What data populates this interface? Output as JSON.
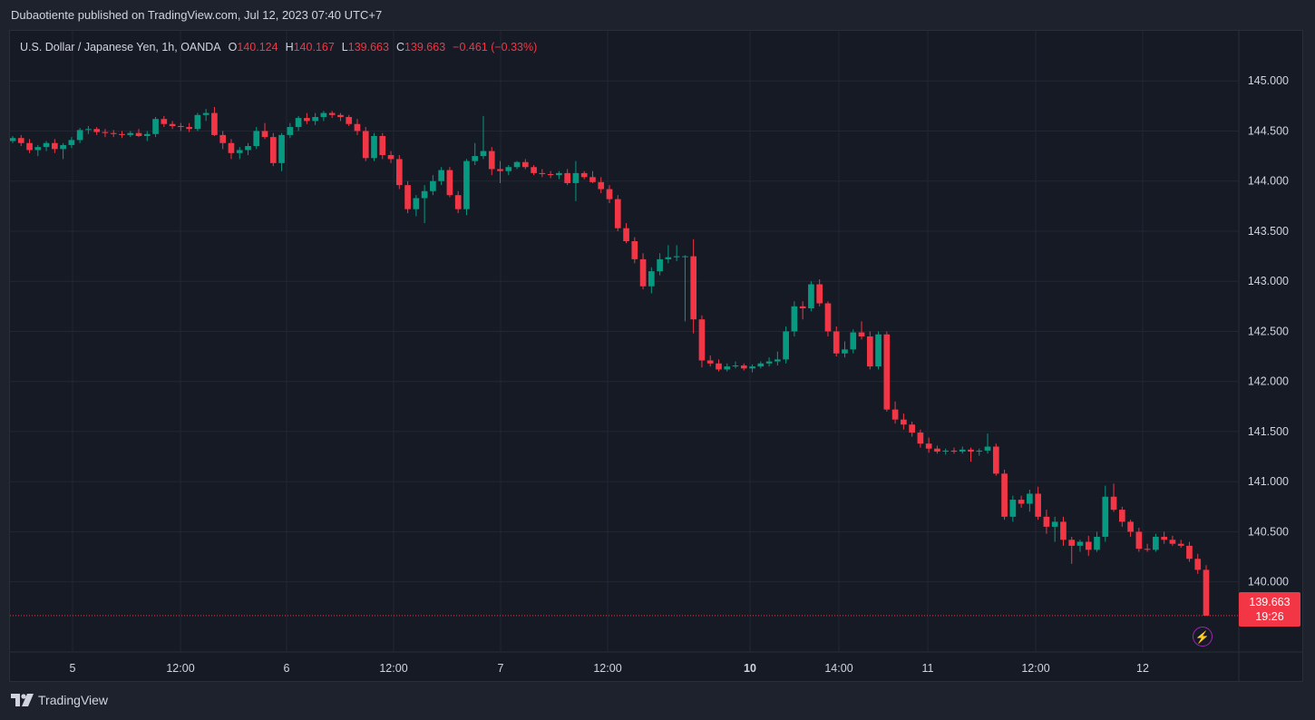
{
  "header": {
    "published_text": "Dubaotiente published on TradingView.com, Jul 12, 2023 07:40 UTC+7"
  },
  "legend": {
    "symbol": "U.S. Dollar / Japanese Yen, 1h, OANDA",
    "o_label": "O",
    "o_value": "140.124",
    "h_label": "H",
    "h_value": "140.167",
    "l_label": "L",
    "l_value": "139.663",
    "c_label": "C",
    "c_value": "139.663",
    "change": "−0.461 (−0.33%)"
  },
  "price_tag": {
    "price": "139.663",
    "countdown": "19:26"
  },
  "footer": {
    "brand": "TradingView"
  },
  "colors": {
    "up": "#089981",
    "down": "#f23645",
    "background": "#161a25",
    "grid": "#232733",
    "text": "#d1d4dc"
  },
  "icons": {
    "flash": "lightning-icon",
    "logo": "tradingview-logo-icon"
  },
  "chart_data": {
    "type": "candlestick",
    "instrument": "U.S. Dollar / Japanese Yen",
    "interval": "1h",
    "source": "OANDA",
    "last_price": 139.663,
    "y_ticks": [
      "145.000",
      "144.500",
      "144.000",
      "143.500",
      "143.000",
      "142.500",
      "142.000",
      "141.500",
      "141.000",
      "140.500",
      "140.000"
    ],
    "ylim": [
      139.3,
      145.5
    ],
    "x_labels": [
      {
        "text": "5",
        "bold": false
      },
      {
        "text": "12:00",
        "bold": false
      },
      {
        "text": "6",
        "bold": false
      },
      {
        "text": "12:00",
        "bold": false
      },
      {
        "text": "7",
        "bold": false
      },
      {
        "text": "12:00",
        "bold": false
      },
      {
        "text": "10",
        "bold": true
      },
      {
        "text": "14:00",
        "bold": false
      },
      {
        "text": "11",
        "bold": false
      },
      {
        "text": "12:00",
        "bold": false
      },
      {
        "text": "12",
        "bold": false
      }
    ],
    "candles": [
      [
        144.4,
        144.45,
        144.38,
        144.43
      ],
      [
        144.43,
        144.46,
        144.35,
        144.38
      ],
      [
        144.38,
        144.42,
        144.28,
        144.31
      ],
      [
        144.31,
        144.36,
        144.25,
        144.34
      ],
      [
        144.34,
        144.4,
        144.3,
        144.38
      ],
      [
        144.38,
        144.42,
        144.28,
        144.32
      ],
      [
        144.32,
        144.38,
        144.22,
        144.36
      ],
      [
        144.36,
        144.44,
        144.33,
        144.41
      ],
      [
        144.41,
        144.53,
        144.38,
        144.51
      ],
      [
        144.51,
        144.55,
        144.47,
        144.52
      ],
      [
        144.52,
        144.54,
        144.46,
        144.49
      ],
      [
        144.49,
        144.52,
        144.44,
        144.48
      ],
      [
        144.48,
        144.51,
        144.44,
        144.47
      ],
      [
        144.47,
        144.5,
        144.43,
        144.46
      ],
      [
        144.46,
        144.5,
        144.44,
        144.48
      ],
      [
        144.48,
        144.52,
        144.44,
        144.45
      ],
      [
        144.45,
        144.5,
        144.4,
        144.47
      ],
      [
        144.47,
        144.64,
        144.44,
        144.62
      ],
      [
        144.62,
        144.65,
        144.54,
        144.57
      ],
      [
        144.57,
        144.6,
        144.52,
        144.55
      ],
      [
        144.55,
        144.58,
        144.5,
        144.54
      ],
      [
        144.54,
        144.58,
        144.49,
        144.52
      ],
      [
        144.52,
        144.68,
        144.5,
        144.66
      ],
      [
        144.66,
        144.72,
        144.6,
        144.68
      ],
      [
        144.68,
        144.74,
        144.45,
        144.46
      ],
      [
        144.46,
        144.5,
        144.32,
        144.38
      ],
      [
        144.38,
        144.42,
        144.22,
        144.28
      ],
      [
        144.28,
        144.34,
        144.22,
        144.31
      ],
      [
        144.31,
        144.38,
        144.26,
        144.35
      ],
      [
        144.35,
        144.54,
        144.32,
        144.5
      ],
      [
        144.5,
        144.58,
        144.42,
        144.44
      ],
      [
        144.44,
        144.48,
        144.15,
        144.18
      ],
      [
        144.18,
        144.48,
        144.1,
        144.46
      ],
      [
        144.46,
        144.58,
        144.43,
        144.54
      ],
      [
        144.54,
        144.65,
        144.5,
        144.63
      ],
      [
        144.63,
        144.68,
        144.57,
        144.6
      ],
      [
        144.6,
        144.68,
        144.56,
        144.64
      ],
      [
        144.64,
        144.7,
        144.6,
        144.68
      ],
      [
        144.68,
        144.7,
        144.63,
        144.66
      ],
      [
        144.66,
        144.68,
        144.6,
        144.64
      ],
      [
        144.64,
        144.66,
        144.55,
        144.57
      ],
      [
        144.57,
        144.62,
        144.46,
        144.5
      ],
      [
        144.5,
        144.54,
        144.2,
        144.23
      ],
      [
        144.23,
        144.48,
        144.2,
        144.45
      ],
      [
        144.45,
        144.48,
        144.22,
        144.26
      ],
      [
        144.26,
        144.3,
        144.18,
        144.22
      ],
      [
        144.22,
        144.26,
        143.92,
        143.96
      ],
      [
        143.96,
        144.0,
        143.68,
        143.72
      ],
      [
        143.72,
        143.86,
        143.65,
        143.83
      ],
      [
        143.83,
        143.96,
        143.58,
        143.9
      ],
      [
        143.9,
        144.06,
        143.86,
        144.0
      ],
      [
        144.0,
        144.14,
        143.96,
        144.11
      ],
      [
        144.11,
        144.14,
        143.84,
        143.86
      ],
      [
        143.86,
        143.9,
        143.68,
        143.72
      ],
      [
        143.72,
        144.22,
        143.66,
        144.2
      ],
      [
        144.2,
        144.38,
        144.16,
        144.25
      ],
      [
        144.25,
        144.65,
        144.22,
        144.3
      ],
      [
        144.3,
        144.34,
        144.06,
        144.12
      ],
      [
        144.12,
        144.2,
        143.98,
        144.1
      ],
      [
        144.1,
        144.16,
        144.06,
        144.14
      ],
      [
        144.14,
        144.2,
        144.12,
        144.19
      ],
      [
        144.19,
        144.22,
        144.12,
        144.14
      ],
      [
        144.14,
        144.16,
        144.06,
        144.08
      ],
      [
        144.08,
        144.12,
        144.04,
        144.07
      ],
      [
        144.07,
        144.1,
        144.03,
        144.06
      ],
      [
        144.06,
        144.1,
        144.02,
        144.08
      ],
      [
        144.08,
        144.12,
        143.96,
        143.98
      ],
      [
        143.98,
        144.2,
        143.8,
        144.08
      ],
      [
        144.08,
        144.1,
        144.02,
        144.04
      ],
      [
        144.04,
        144.1,
        143.98,
        143.99
      ],
      [
        143.99,
        144.04,
        143.88,
        143.92
      ],
      [
        143.92,
        143.96,
        143.78,
        143.82
      ],
      [
        143.82,
        143.86,
        143.5,
        143.53
      ],
      [
        143.53,
        143.58,
        143.38,
        143.4
      ],
      [
        143.4,
        143.44,
        143.18,
        143.22
      ],
      [
        143.22,
        143.28,
        142.92,
        142.95
      ],
      [
        142.95,
        143.14,
        142.88,
        143.1
      ],
      [
        143.1,
        143.28,
        143.06,
        143.22
      ],
      [
        143.22,
        143.36,
        143.18,
        143.24
      ],
      [
        143.24,
        143.36,
        143.2,
        143.25
      ],
      [
        143.25,
        143.26,
        142.6,
        143.25
      ],
      [
        143.25,
        143.42,
        142.48,
        142.62
      ],
      [
        142.62,
        142.66,
        142.14,
        142.21
      ],
      [
        142.21,
        142.26,
        142.15,
        142.18
      ],
      [
        142.18,
        142.22,
        142.1,
        142.12
      ],
      [
        142.12,
        142.18,
        142.1,
        142.15
      ],
      [
        142.15,
        142.2,
        142.13,
        142.16
      ],
      [
        142.16,
        142.18,
        142.11,
        142.13
      ],
      [
        142.13,
        142.17,
        142.09,
        142.15
      ],
      [
        142.15,
        142.2,
        142.13,
        142.18
      ],
      [
        142.18,
        142.24,
        142.15,
        142.2
      ],
      [
        142.2,
        142.3,
        142.16,
        142.22
      ],
      [
        142.22,
        142.55,
        142.18,
        142.5
      ],
      [
        142.5,
        142.8,
        142.45,
        142.75
      ],
      [
        142.75,
        142.8,
        142.62,
        142.73
      ],
      [
        142.73,
        143.0,
        142.7,
        142.97
      ],
      [
        142.97,
        143.02,
        142.75,
        142.78
      ],
      [
        142.78,
        142.8,
        142.45,
        142.5
      ],
      [
        142.5,
        142.55,
        142.25,
        142.28
      ],
      [
        142.28,
        142.4,
        142.24,
        142.32
      ],
      [
        142.32,
        142.52,
        142.28,
        142.49
      ],
      [
        142.49,
        142.6,
        142.42,
        142.45
      ],
      [
        142.45,
        142.5,
        142.12,
        142.15
      ],
      [
        142.15,
        142.5,
        142.12,
        142.47
      ],
      [
        142.47,
        142.5,
        141.7,
        141.72
      ],
      [
        141.72,
        141.8,
        141.58,
        141.62
      ],
      [
        141.62,
        141.68,
        141.52,
        141.57
      ],
      [
        141.57,
        141.6,
        141.45,
        141.49
      ],
      [
        141.49,
        141.52,
        141.34,
        141.38
      ],
      [
        141.38,
        141.44,
        141.29,
        141.33
      ],
      [
        141.33,
        141.36,
        141.28,
        141.3
      ],
      [
        141.3,
        141.33,
        141.27,
        141.31
      ],
      [
        141.31,
        141.34,
        141.28,
        141.3
      ],
      [
        141.3,
        141.35,
        141.28,
        141.32
      ],
      [
        141.32,
        141.34,
        141.2,
        141.3
      ],
      [
        141.3,
        141.33,
        141.26,
        141.31
      ],
      [
        141.31,
        141.48,
        141.28,
        141.35
      ],
      [
        141.35,
        141.38,
        141.06,
        141.08
      ],
      [
        141.08,
        141.12,
        140.62,
        140.65
      ],
      [
        140.65,
        140.86,
        140.6,
        140.82
      ],
      [
        140.82,
        140.86,
        140.74,
        140.78
      ],
      [
        140.78,
        140.92,
        140.7,
        140.88
      ],
      [
        140.88,
        140.95,
        140.62,
        140.65
      ],
      [
        140.65,
        140.72,
        140.48,
        140.55
      ],
      [
        140.55,
        140.65,
        140.4,
        140.6
      ],
      [
        140.6,
        140.65,
        140.36,
        140.42
      ],
      [
        140.42,
        140.45,
        140.18,
        140.36
      ],
      [
        140.36,
        140.42,
        140.3,
        140.4
      ],
      [
        140.4,
        140.46,
        140.26,
        140.32
      ],
      [
        140.32,
        140.5,
        140.3,
        140.45
      ],
      [
        140.45,
        140.96,
        140.4,
        140.85
      ],
      [
        140.85,
        140.98,
        140.7,
        140.72
      ],
      [
        140.72,
        140.75,
        140.55,
        140.6
      ],
      [
        140.6,
        140.62,
        140.45,
        140.5
      ],
      [
        140.5,
        140.54,
        140.3,
        140.33
      ],
      [
        140.33,
        140.38,
        140.3,
        140.32
      ],
      [
        140.32,
        140.48,
        140.3,
        140.45
      ],
      [
        140.45,
        140.5,
        140.38,
        140.42
      ],
      [
        140.42,
        140.46,
        140.36,
        140.38
      ],
      [
        140.38,
        140.42,
        140.34,
        140.36
      ],
      [
        140.36,
        140.4,
        140.2,
        140.23
      ],
      [
        140.23,
        140.28,
        140.08,
        140.12
      ],
      [
        140.12,
        140.167,
        139.663,
        139.663
      ]
    ]
  }
}
